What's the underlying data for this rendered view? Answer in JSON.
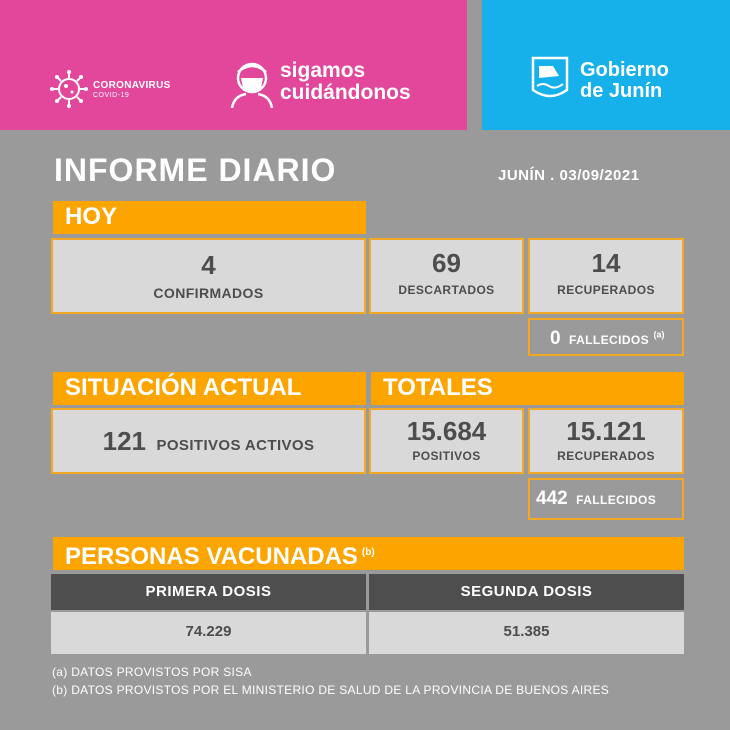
{
  "header": {
    "corona_title": "CORONAVIRUS",
    "corona_sub": "COVID-19",
    "campaign_line1": "sigamos",
    "campaign_line2": "cuidándonos",
    "gov_line1": "Gobierno",
    "gov_line2": "de Junín"
  },
  "report": {
    "title": "INFORME DIARIO",
    "date": "JUNÍN . 03/09/2021"
  },
  "hoy": {
    "heading": "HOY",
    "confirmados_value": "4",
    "confirmados_label": "CONFIRMADOS",
    "descartados_value": "69",
    "descartados_label": "DESCARTADOS",
    "recuperados_value": "14",
    "recuperados_label": "RECUPERADOS",
    "fallecidos_value": "0",
    "fallecidos_label": "FALLECIDOS",
    "fallecidos_note": "(a)"
  },
  "situacion": {
    "heading": "SITUACIÓN ACTUAL",
    "activos_value": "121",
    "activos_label": "POSITIVOS ACTIVOS"
  },
  "totales": {
    "heading": "TOTALES",
    "positivos_value": "15.684",
    "positivos_label": "POSITIVOS",
    "recuperados_value": "15.121",
    "recuperados_label": "RECUPERADOS",
    "fallecidos_value": "442",
    "fallecidos_label": "FALLECIDOS"
  },
  "vacunas": {
    "heading": "PERSONAS VACUNADAS",
    "heading_note": "(b)",
    "primera_label": "PRIMERA DOSIS",
    "segunda_label": "SEGUNDA DOSIS",
    "primera_value": "74.229",
    "segunda_value": "51.385"
  },
  "footnotes": {
    "a": "(a)  DATOS PROVISTOS POR SISA",
    "b": "(b)  DATOS PROVISTOS POR EL MINISTERIO DE SALUD DE LA PROVINCIA DE BUENOS AIRES"
  },
  "colors": {
    "pink": "#e2479c",
    "blue": "#16b1ea",
    "orange": "#fca500",
    "gray_bg": "#9a9a9a"
  }
}
